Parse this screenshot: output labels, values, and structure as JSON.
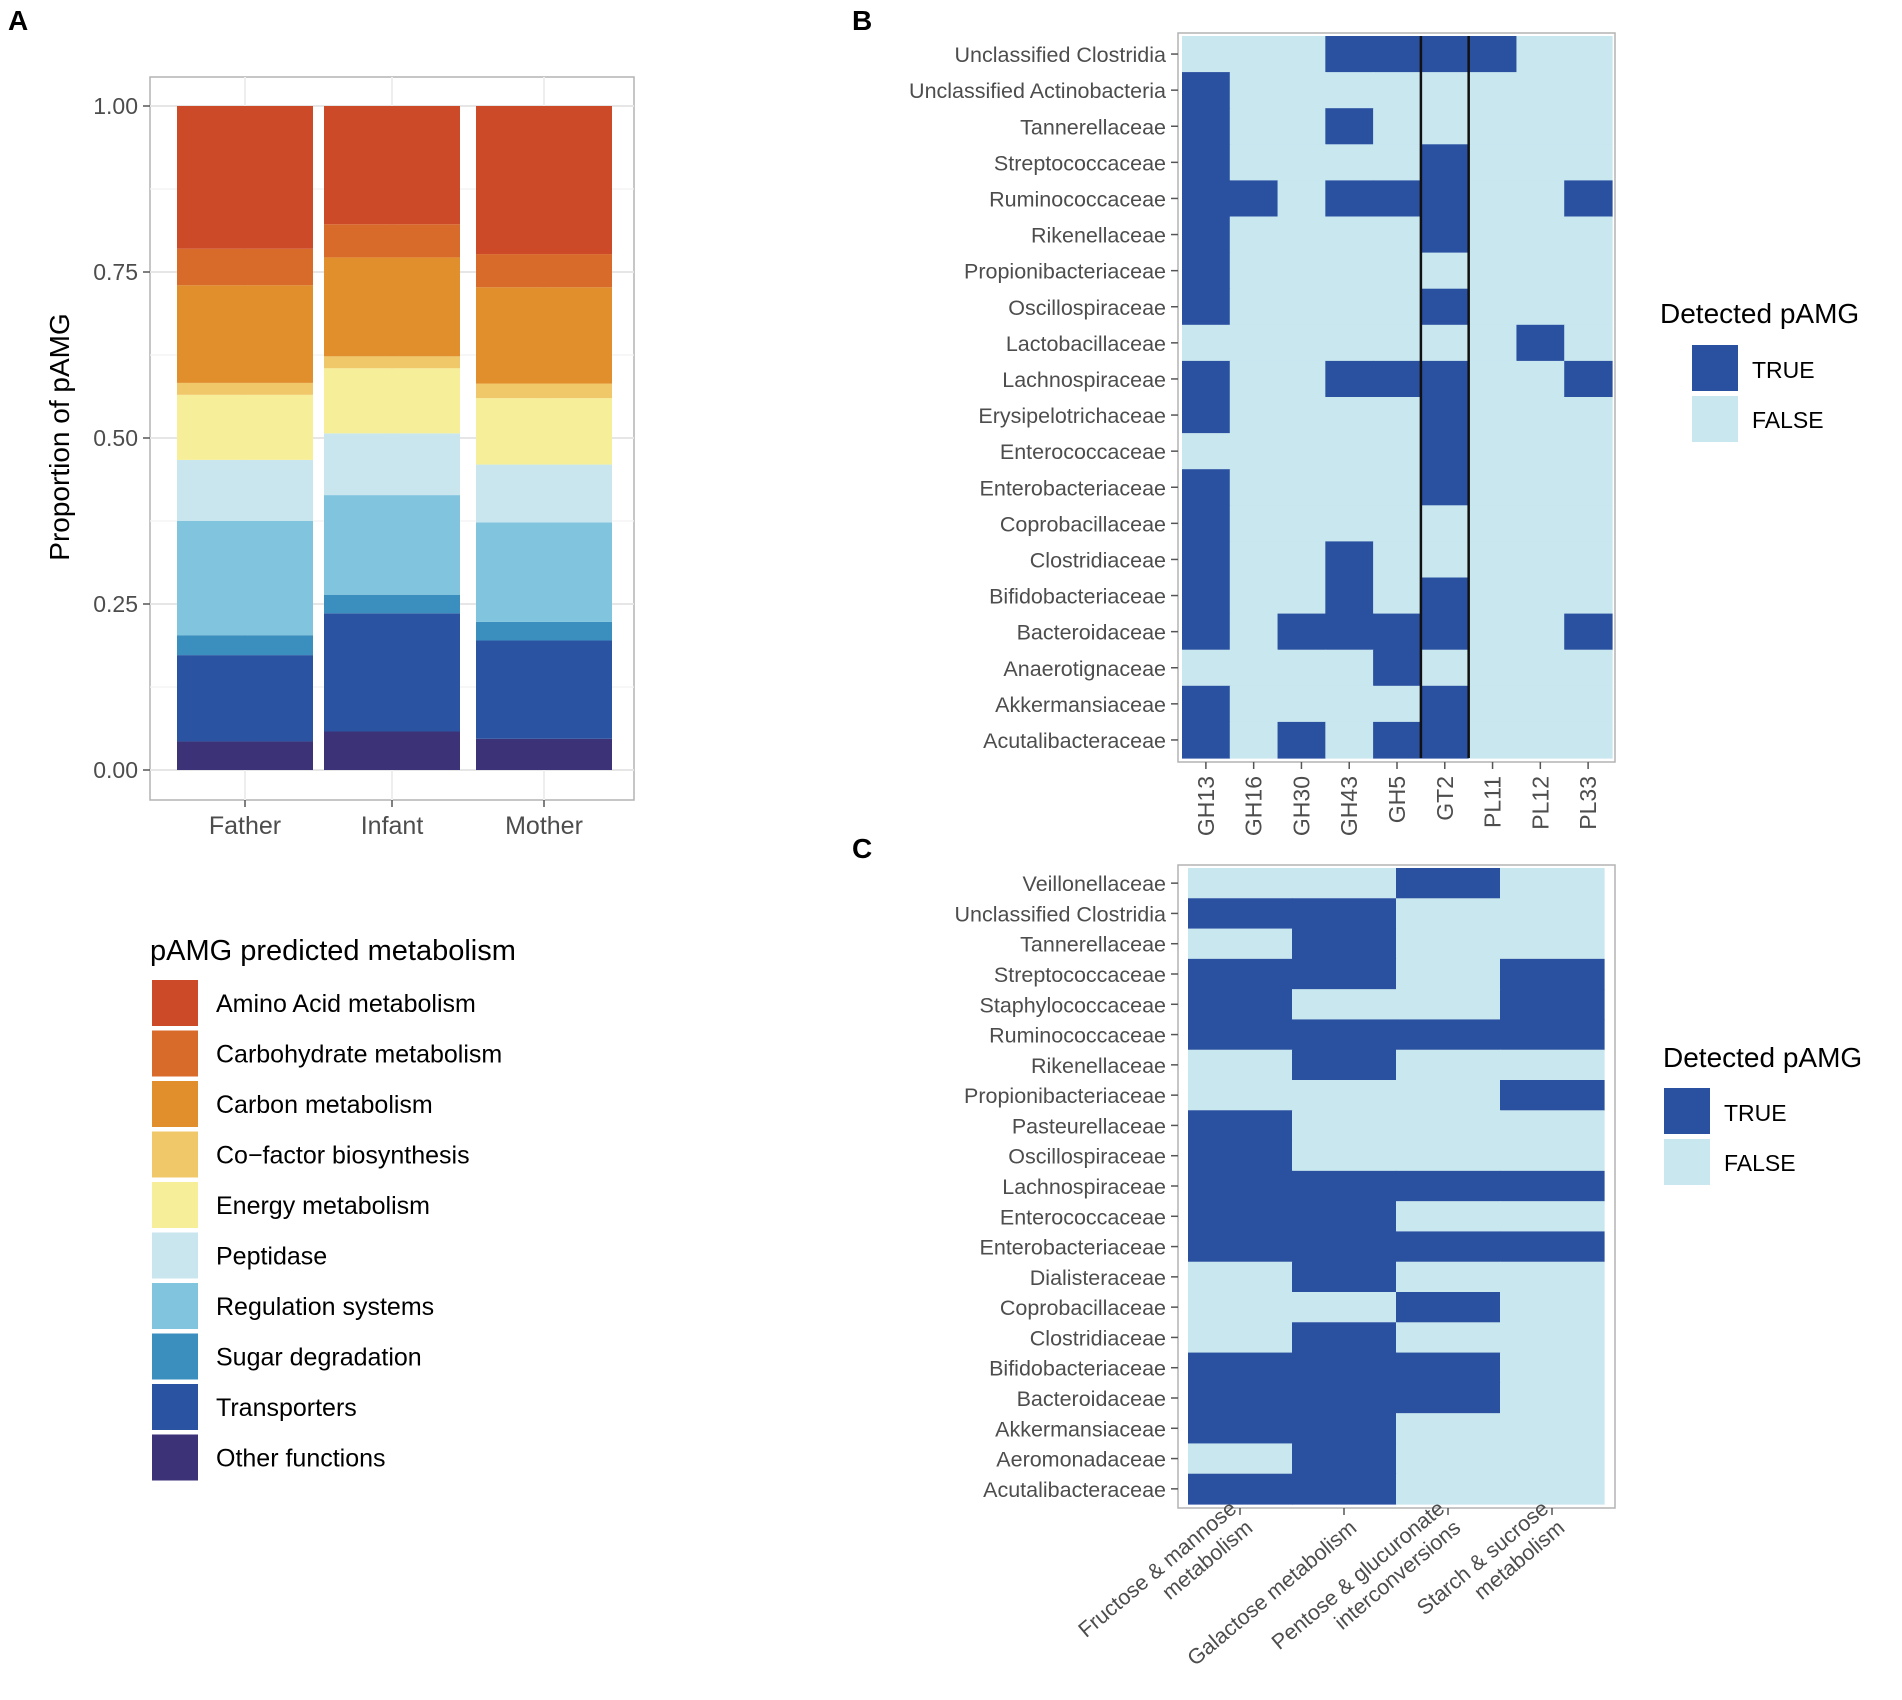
{
  "chart_data": [
    {
      "panel": "A",
      "type": "bar",
      "stacked": true,
      "categories": [
        "Father",
        "Infant",
        "Mother"
      ],
      "ylabel": "Proportion of pAMG",
      "xlabel": "",
      "ylim": [
        0,
        1
      ],
      "yticks": [
        "0.00",
        "0.25",
        "0.50",
        "0.75",
        "1.00"
      ],
      "legend_title": "pAMG predicted metabolism",
      "legend_position": "bottom",
      "series": [
        {
          "name": "Other functions",
          "color": "#3b3277",
          "values": [
            0.043,
            0.058,
            0.047
          ]
        },
        {
          "name": "Transporters",
          "color": "#2a53a2",
          "values": [
            0.13,
            0.178,
            0.148
          ]
        },
        {
          "name": "Sugar degradation",
          "color": "#3a8fbe",
          "values": [
            0.03,
            0.028,
            0.028
          ]
        },
        {
          "name": "Regulation systems",
          "color": "#80c4de",
          "values": [
            0.172,
            0.15,
            0.15
          ]
        },
        {
          "name": "Peptidase",
          "color": "#c9e6ef",
          "values": [
            0.092,
            0.093,
            0.087
          ]
        },
        {
          "name": "Energy metabolism",
          "color": "#f7ee9a",
          "values": [
            0.098,
            0.098,
            0.1
          ]
        },
        {
          "name": "Co−factor biosynthesis",
          "color": "#f0c86a",
          "values": [
            0.018,
            0.018,
            0.022
          ]
        },
        {
          "name": "Carbon metabolism",
          "color": "#e18e2c",
          "values": [
            0.147,
            0.149,
            0.145
          ]
        },
        {
          "name": "Carbohydrate metabolism",
          "color": "#d86a2a",
          "values": [
            0.055,
            0.05,
            0.05
          ]
        },
        {
          "name": "Amino Acid metabolism",
          "color": "#cc4a27",
          "values": [
            0.215,
            0.178,
            0.223
          ]
        }
      ],
      "legend_order": [
        "Amino Acid metabolism",
        "Carbohydrate metabolism",
        "Carbon metabolism",
        "Co−factor biosynthesis",
        "Energy metabolism",
        "Peptidase",
        "Regulation systems",
        "Sugar degradation",
        "Transporters",
        "Other functions"
      ]
    },
    {
      "panel": "B",
      "type": "heatmap",
      "columns": [
        "GH13",
        "GH16",
        "GH30",
        "GH43",
        "GH5",
        "GT2",
        "PL11",
        "PL12",
        "PL33"
      ],
      "rows": [
        "Unclassified Clostridia",
        "Unclassified Actinobacteria",
        "Tannerellaceae",
        "Streptococcaceae",
        "Ruminococcaceae",
        "Rikenellaceae",
        "Propionibacteriaceae",
        "Oscillospiraceae",
        "Lactobacillaceae",
        "Lachnospiraceae",
        "Erysipelotrichaceae",
        "Enterococcaceae",
        "Enterobacteriaceae",
        "Coprobacillaceae",
        "Clostridiaceae",
        "Bifidobacteriaceae",
        "Bacteroidaceae",
        "Anaerotignaceae",
        "Akkermansiaceae",
        "Acutalibacteraceae"
      ],
      "matrix": [
        [
          0,
          0,
          0,
          1,
          1,
          1,
          1,
          0,
          0
        ],
        [
          1,
          0,
          0,
          0,
          0,
          0,
          0,
          0,
          0
        ],
        [
          1,
          0,
          0,
          1,
          0,
          0,
          0,
          0,
          0
        ],
        [
          1,
          0,
          0,
          0,
          0,
          1,
          0,
          0,
          0
        ],
        [
          1,
          1,
          0,
          1,
          1,
          1,
          0,
          0,
          1
        ],
        [
          1,
          0,
          0,
          0,
          0,
          1,
          0,
          0,
          0
        ],
        [
          1,
          0,
          0,
          0,
          0,
          0,
          0,
          0,
          0
        ],
        [
          1,
          0,
          0,
          0,
          0,
          1,
          0,
          0,
          0
        ],
        [
          0,
          0,
          0,
          0,
          0,
          0,
          0,
          1,
          0
        ],
        [
          1,
          0,
          0,
          1,
          1,
          1,
          0,
          0,
          1
        ],
        [
          1,
          0,
          0,
          0,
          0,
          1,
          0,
          0,
          0
        ],
        [
          0,
          0,
          0,
          0,
          0,
          1,
          0,
          0,
          0
        ],
        [
          1,
          0,
          0,
          0,
          0,
          1,
          0,
          0,
          0
        ],
        [
          1,
          0,
          0,
          0,
          0,
          0,
          0,
          0,
          0
        ],
        [
          1,
          0,
          0,
          1,
          0,
          0,
          0,
          0,
          0
        ],
        [
          1,
          0,
          0,
          1,
          0,
          1,
          0,
          0,
          0
        ],
        [
          1,
          0,
          1,
          1,
          1,
          1,
          0,
          0,
          1
        ],
        [
          0,
          0,
          0,
          0,
          1,
          0,
          0,
          0,
          0
        ],
        [
          1,
          0,
          0,
          0,
          0,
          1,
          0,
          0,
          0
        ],
        [
          1,
          0,
          1,
          0,
          1,
          1,
          0,
          0,
          0
        ]
      ],
      "highlighted_column": "GT2",
      "legend_title": "Detected pAMG",
      "legend_labels": [
        "TRUE",
        "FALSE"
      ],
      "true_color": "#2a50a0",
      "false_color": "#c9e7ef"
    },
    {
      "panel": "C",
      "type": "heatmap",
      "columns": [
        "Fructose & mannose metabolism",
        "Galactose metabolism",
        "Pentose & glucuronate interconversions",
        "Starch & sucrose metabolism"
      ],
      "column_label_lines": [
        [
          "Fructose & mannose",
          "metabolism"
        ],
        [
          "Galactose metabolism"
        ],
        [
          "Pentose & glucuronate",
          "interconversions"
        ],
        [
          "Starch & sucrose",
          "metabolism"
        ]
      ],
      "rows": [
        "Veillonellaceae",
        "Unclassified Clostridia",
        "Tannerellaceae",
        "Streptococcaceae",
        "Staphylococcaceae",
        "Ruminococcaceae",
        "Rikenellaceae",
        "Propionibacteriaceae",
        "Pasteurellaceae",
        "Oscillospiraceae",
        "Lachnospiraceae",
        "Enterococcaceae",
        "Enterobacteriaceae",
        "Dialisteraceae",
        "Coprobacillaceae",
        "Clostridiaceae",
        "Bifidobacteriaceae",
        "Bacteroidaceae",
        "Akkermansiaceae",
        "Aeromonadaceae",
        "Acutalibacteraceae"
      ],
      "matrix": [
        [
          0,
          0,
          1,
          0
        ],
        [
          1,
          1,
          0,
          0
        ],
        [
          0,
          1,
          0,
          0
        ],
        [
          1,
          1,
          0,
          1
        ],
        [
          1,
          0,
          0,
          1
        ],
        [
          1,
          1,
          1,
          1
        ],
        [
          0,
          1,
          0,
          0
        ],
        [
          0,
          0,
          0,
          1
        ],
        [
          1,
          0,
          0,
          0
        ],
        [
          1,
          0,
          0,
          0
        ],
        [
          1,
          1,
          1,
          1
        ],
        [
          1,
          1,
          0,
          0
        ],
        [
          1,
          1,
          1,
          1
        ],
        [
          0,
          1,
          0,
          0
        ],
        [
          0,
          0,
          1,
          0
        ],
        [
          0,
          1,
          0,
          0
        ],
        [
          1,
          1,
          1,
          0
        ],
        [
          1,
          1,
          1,
          0
        ],
        [
          1,
          1,
          0,
          0
        ],
        [
          0,
          1,
          0,
          0
        ],
        [
          1,
          1,
          0,
          0
        ]
      ],
      "legend_title": "Detected pAMG",
      "legend_labels": [
        "TRUE",
        "FALSE"
      ],
      "true_color": "#2a50a0",
      "false_color": "#c9e7ef"
    }
  ],
  "panel_labels": [
    "A",
    "B",
    "C"
  ]
}
